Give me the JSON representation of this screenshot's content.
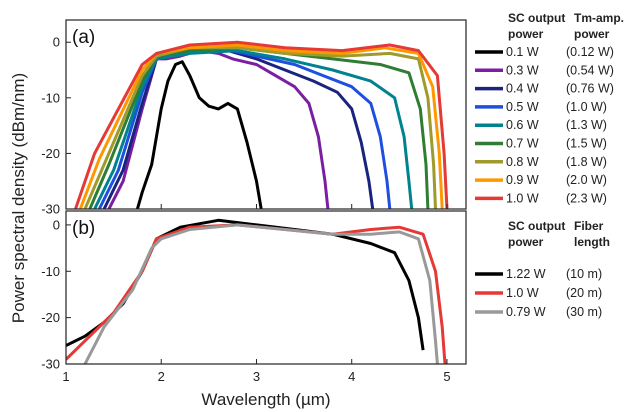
{
  "figure": {
    "ylabel": "Power spectral density (dBm/nm)",
    "xlabel": "Wavelength (µm)"
  },
  "chart_data": [
    {
      "type": "line",
      "panel_label": "(a)",
      "xlim": [
        1,
        5.2
      ],
      "ylim": [
        -30,
        4
      ],
      "xticks": [
        1,
        2,
        3,
        4,
        5
      ],
      "yticks": [
        0,
        -10,
        -20,
        -30
      ],
      "legend_header": [
        "SC output",
        "power",
        "Tm-amp.",
        "power"
      ],
      "series": [
        {
          "name": "0.1 W",
          "name2": "(0.12 W)",
          "color": "#000000",
          "points": [
            [
              1.75,
              -30
            ],
            [
              1.8,
              -27
            ],
            [
              1.9,
              -22
            ],
            [
              2.0,
              -12
            ],
            [
              2.07,
              -7
            ],
            [
              2.15,
              -4
            ],
            [
              2.22,
              -3.5
            ],
            [
              2.3,
              -6
            ],
            [
              2.4,
              -10
            ],
            [
              2.5,
              -11.5
            ],
            [
              2.6,
              -12
            ],
            [
              2.7,
              -11
            ],
            [
              2.8,
              -12
            ],
            [
              2.9,
              -18
            ],
            [
              3.0,
              -25
            ],
            [
              3.05,
              -30
            ]
          ]
        },
        {
          "name": "0.3 W",
          "name2": "(0.54 W)",
          "color": "#7b1fa2",
          "points": [
            [
              1.45,
              -30
            ],
            [
              1.6,
              -25
            ],
            [
              1.8,
              -12
            ],
            [
              1.95,
              -3
            ],
            [
              2.05,
              -3
            ],
            [
              2.2,
              -2.5
            ],
            [
              2.4,
              -1.5
            ],
            [
              2.6,
              -2
            ],
            [
              2.75,
              -3
            ],
            [
              3.0,
              -4
            ],
            [
              3.2,
              -6
            ],
            [
              3.4,
              -8
            ],
            [
              3.55,
              -11
            ],
            [
              3.65,
              -17
            ],
            [
              3.72,
              -25
            ],
            [
              3.75,
              -30
            ]
          ]
        },
        {
          "name": "0.4 W",
          "name2": "(0.76 W)",
          "color": "#1a237e",
          "points": [
            [
              1.4,
              -30
            ],
            [
              1.6,
              -23
            ],
            [
              1.8,
              -11
            ],
            [
              1.95,
              -3
            ],
            [
              2.2,
              -2
            ],
            [
              2.45,
              -1
            ],
            [
              2.7,
              -1.5
            ],
            [
              3.0,
              -3
            ],
            [
              3.3,
              -5
            ],
            [
              3.6,
              -7
            ],
            [
              3.85,
              -9
            ],
            [
              4.0,
              -12
            ],
            [
              4.1,
              -18
            ],
            [
              4.18,
              -25
            ],
            [
              4.22,
              -30
            ]
          ]
        },
        {
          "name": "0.5 W",
          "name2": "(1.0 W)",
          "color": "#1e4fe0",
          "points": [
            [
              1.35,
              -30
            ],
            [
              1.55,
              -23
            ],
            [
              1.8,
              -9
            ],
            [
              1.95,
              -3
            ],
            [
              2.2,
              -2
            ],
            [
              2.6,
              -1
            ],
            [
              3.0,
              -2.5
            ],
            [
              3.4,
              -4
            ],
            [
              3.7,
              -6
            ],
            [
              4.0,
              -8
            ],
            [
              4.2,
              -11
            ],
            [
              4.3,
              -17
            ],
            [
              4.37,
              -25
            ],
            [
              4.4,
              -30
            ]
          ]
        },
        {
          "name": "0.6 W",
          "name2": "(1.3 W)",
          "color": "#00838f",
          "points": [
            [
              1.3,
              -30
            ],
            [
              1.5,
              -23
            ],
            [
              1.8,
              -8
            ],
            [
              1.95,
              -3
            ],
            [
              2.3,
              -2
            ],
            [
              2.8,
              -1.5
            ],
            [
              3.3,
              -3
            ],
            [
              3.8,
              -5
            ],
            [
              4.2,
              -7
            ],
            [
              4.45,
              -10
            ],
            [
              4.55,
              -17
            ],
            [
              4.6,
              -25
            ],
            [
              4.63,
              -30
            ]
          ]
        },
        {
          "name": "0.7 W",
          "name2": "(1.5 W)",
          "color": "#2e7d32",
          "points": [
            [
              1.25,
              -30
            ],
            [
              1.45,
              -22
            ],
            [
              1.8,
              -7
            ],
            [
              1.95,
              -2.5
            ],
            [
              2.3,
              -1.5
            ],
            [
              2.8,
              -1
            ],
            [
              3.3,
              -2
            ],
            [
              3.8,
              -3
            ],
            [
              4.3,
              -4
            ],
            [
              4.6,
              -5.5
            ],
            [
              4.72,
              -12
            ],
            [
              4.78,
              -22
            ],
            [
              4.8,
              -30
            ]
          ]
        },
        {
          "name": "0.8 W",
          "name2": "(1.8 W)",
          "color": "#9e9a2c",
          "points": [
            [
              1.2,
              -30
            ],
            [
              1.4,
              -22
            ],
            [
              1.8,
              -6
            ],
            [
              1.95,
              -2.5
            ],
            [
              2.3,
              -1
            ],
            [
              2.8,
              -1
            ],
            [
              3.3,
              -2
            ],
            [
              3.9,
              -2.5
            ],
            [
              4.4,
              -2
            ],
            [
              4.7,
              -3
            ],
            [
              4.8,
              -10
            ],
            [
              4.86,
              -22
            ],
            [
              4.88,
              -30
            ]
          ]
        },
        {
          "name": "0.9 W",
          "name2": "(2.0 W)",
          "color": "#ff9800",
          "points": [
            [
              1.15,
              -30
            ],
            [
              1.35,
              -21
            ],
            [
              1.8,
              -5
            ],
            [
              1.95,
              -2
            ],
            [
              2.3,
              -1
            ],
            [
              2.8,
              -0.5
            ],
            [
              3.3,
              -1.5
            ],
            [
              3.9,
              -2
            ],
            [
              4.35,
              -1
            ],
            [
              4.7,
              -2
            ],
            [
              4.85,
              -8
            ],
            [
              4.92,
              -20
            ],
            [
              4.95,
              -30
            ]
          ]
        },
        {
          "name": "1.0 W",
          "name2": "(2.3 W)",
          "color": "#e53935",
          "points": [
            [
              1.1,
              -30
            ],
            [
              1.3,
              -20
            ],
            [
              1.8,
              -4
            ],
            [
              1.95,
              -2
            ],
            [
              2.3,
              -0.5
            ],
            [
              2.8,
              0
            ],
            [
              3.3,
              -1
            ],
            [
              3.9,
              -1.5
            ],
            [
              4.4,
              -0.5
            ],
            [
              4.7,
              -1.5
            ],
            [
              4.9,
              -6
            ],
            [
              4.97,
              -20
            ],
            [
              5.0,
              -30
            ]
          ]
        }
      ]
    },
    {
      "type": "line",
      "panel_label": "(b)",
      "xlim": [
        1,
        5.2
      ],
      "ylim": [
        -30,
        3
      ],
      "xticks": [
        1,
        2,
        3,
        4,
        5
      ],
      "xticklabels": [
        "1",
        "2",
        "3",
        "4",
        "5"
      ],
      "yticks": [
        0,
        -10,
        -20,
        -30
      ],
      "legend_header": [
        "SC output",
        "power",
        "Fiber",
        "length"
      ],
      "series": [
        {
          "name": "1.22 W",
          "name2": "(10 m)",
          "color": "#000000",
          "points": [
            [
              1.0,
              -26
            ],
            [
              1.2,
              -24
            ],
            [
              1.4,
              -21
            ],
            [
              1.6,
              -17
            ],
            [
              1.8,
              -10
            ],
            [
              1.95,
              -3
            ],
            [
              2.2,
              -0.5
            ],
            [
              2.6,
              1
            ],
            [
              3.0,
              0
            ],
            [
              3.4,
              -1
            ],
            [
              3.8,
              -2
            ],
            [
              4.2,
              -4
            ],
            [
              4.45,
              -6
            ],
            [
              4.6,
              -12
            ],
            [
              4.7,
              -20
            ],
            [
              4.75,
              -27
            ]
          ]
        },
        {
          "name": "1.0 W",
          "name2": "(20 m)",
          "color": "#e53935",
          "points": [
            [
              1.0,
              -29
            ],
            [
              1.2,
              -25
            ],
            [
              1.5,
              -19
            ],
            [
              1.8,
              -10
            ],
            [
              1.95,
              -3
            ],
            [
              2.3,
              -0.5
            ],
            [
              2.8,
              0
            ],
            [
              3.3,
              -1
            ],
            [
              3.8,
              -2
            ],
            [
              4.2,
              -1
            ],
            [
              4.5,
              -0.5
            ],
            [
              4.75,
              -2
            ],
            [
              4.88,
              -10
            ],
            [
              4.95,
              -22
            ],
            [
              4.98,
              -30
            ]
          ]
        },
        {
          "name": "0.79 W",
          "name2": "(30 m)",
          "color": "#999999",
          "points": [
            [
              1.2,
              -30
            ],
            [
              1.4,
              -22
            ],
            [
              1.7,
              -14
            ],
            [
              1.9,
              -5
            ],
            [
              2.0,
              -3
            ],
            [
              2.3,
              -1
            ],
            [
              2.8,
              0
            ],
            [
              3.3,
              -1
            ],
            [
              3.8,
              -2
            ],
            [
              4.2,
              -2
            ],
            [
              4.5,
              -1.5
            ],
            [
              4.7,
              -3
            ],
            [
              4.82,
              -12
            ],
            [
              4.88,
              -25
            ],
            [
              4.9,
              -30
            ]
          ]
        }
      ]
    }
  ]
}
